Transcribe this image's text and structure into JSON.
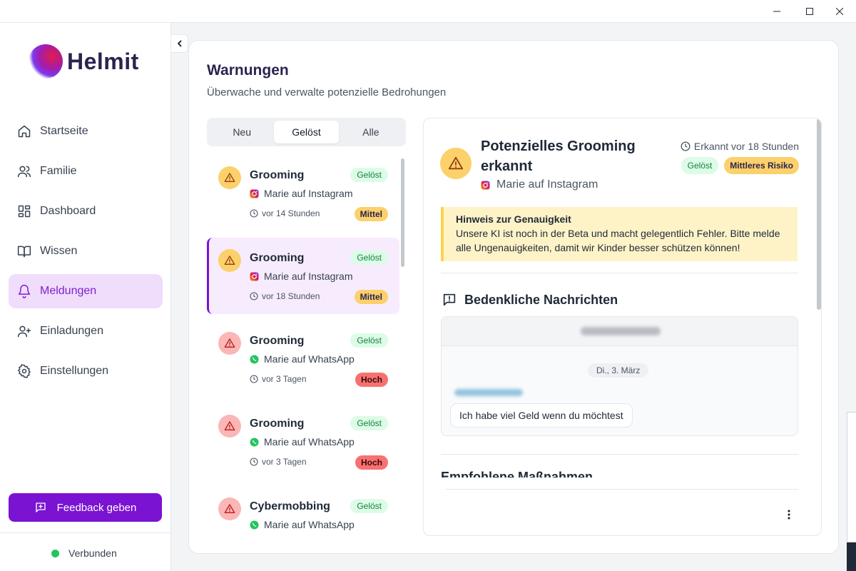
{
  "window": {
    "controls": [
      "minimize",
      "maximize",
      "close"
    ]
  },
  "brand": {
    "name": "Helmit"
  },
  "nav": {
    "items": [
      {
        "label": "Startseite",
        "icon": "home-icon"
      },
      {
        "label": "Familie",
        "icon": "users-icon"
      },
      {
        "label": "Dashboard",
        "icon": "dashboard-icon"
      },
      {
        "label": "Wissen",
        "icon": "book-icon"
      },
      {
        "label": "Meldungen",
        "icon": "bell-icon",
        "active": true
      },
      {
        "label": "Einladungen",
        "icon": "user-plus-icon"
      },
      {
        "label": "Einstellungen",
        "icon": "gear-icon"
      }
    ],
    "feedback_label": "Feedback geben",
    "status_label": "Verbunden"
  },
  "colors": {
    "accent": "#7a13d2",
    "active_bg": "#f0dcfb",
    "medium": "#fcd06a",
    "high": "#f87171",
    "solved_bg": "#dcfce7",
    "solved_text": "#15803d",
    "connected": "#22c55e"
  },
  "page": {
    "title": "Warnungen",
    "subtitle": "Überwache und verwalte potenzielle Bedrohungen",
    "tabs": [
      {
        "label": "Neu"
      },
      {
        "label": "Gelöst",
        "active": true
      },
      {
        "label": "Alle"
      }
    ]
  },
  "alerts": [
    {
      "title": "Grooming",
      "status": "Gelöst",
      "source": "Marie auf Instagram",
      "platform": "instagram",
      "time": "vor 14 Stunden",
      "level": "Mittel",
      "severity": "mid"
    },
    {
      "title": "Grooming",
      "status": "Gelöst",
      "source": "Marie auf Instagram",
      "platform": "instagram",
      "time": "vor 18 Stunden",
      "level": "Mittel",
      "severity": "mid",
      "selected": true
    },
    {
      "title": "Grooming",
      "status": "Gelöst",
      "source": "Marie auf WhatsApp",
      "platform": "whatsapp",
      "time": "vor 3 Tagen",
      "level": "Hoch",
      "severity": "high"
    },
    {
      "title": "Grooming",
      "status": "Gelöst",
      "source": "Marie auf WhatsApp",
      "platform": "whatsapp",
      "time": "vor 3 Tagen",
      "level": "Hoch",
      "severity": "high"
    },
    {
      "title": "Cybermobbing",
      "status": "Gelöst",
      "source": "Marie auf WhatsApp",
      "platform": "whatsapp",
      "time": "",
      "level": "",
      "severity": "high"
    }
  ],
  "detail": {
    "title": "Potenzielles Grooming erkannt",
    "source": "Marie auf Instagram",
    "time": "Erkannt vor 18 Stunden",
    "status": "Gelöst",
    "risk": "Mittleres Risiko",
    "notice": {
      "title": "Hinweis zur Genauigkeit",
      "text": "Unsere KI ist noch in der Beta und macht gelegentlich Fehler. Bitte melde alle Ungenauigkeiten, damit wir Kinder besser schützen können!"
    },
    "messages_heading": "Bedenkliche Nachrichten",
    "chat": {
      "date": "Di., 3. März",
      "message": "Ich habe viel Geld wenn du möchtest"
    },
    "actions_heading": "Empfohlene Maßnahmen"
  }
}
